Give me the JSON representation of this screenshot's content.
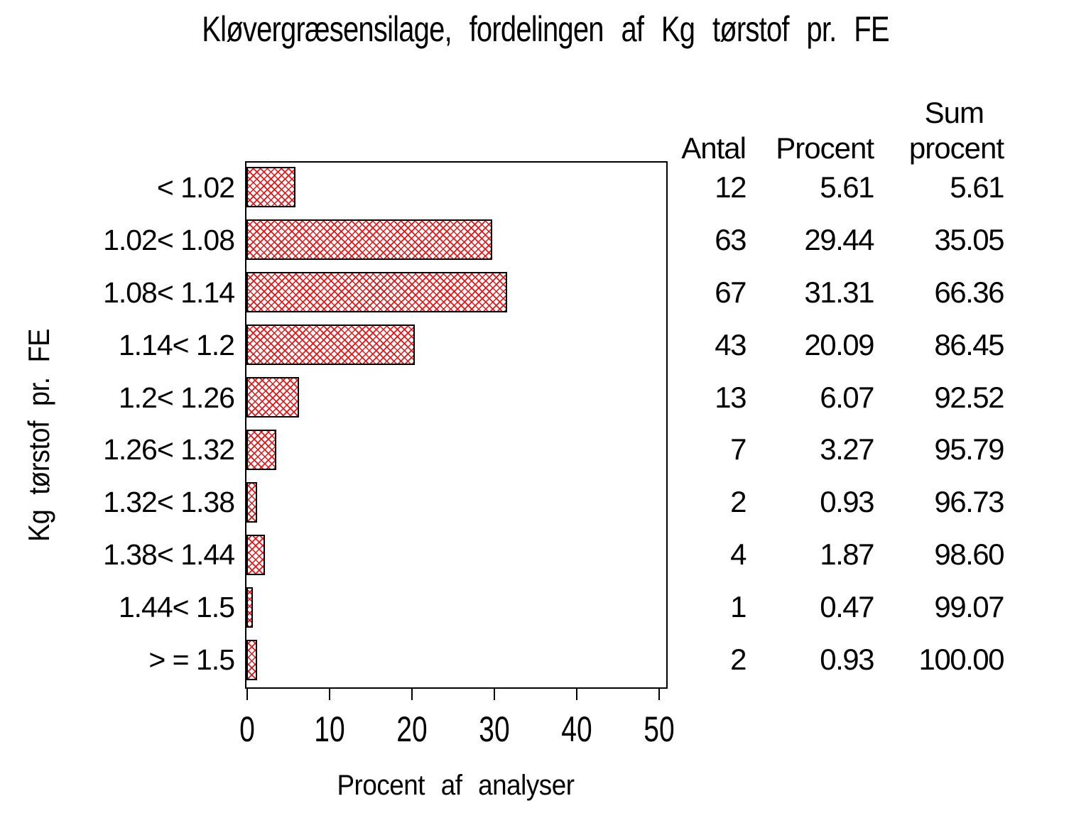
{
  "title": "Kløvergræsensilage, fordelingen af Kg tørstof pr. FE",
  "colors": {
    "bar_hatch_red": "#ee1111",
    "bar_border": "#000000",
    "axis": "#000000",
    "text": "#000000",
    "background": "#ffffff"
  },
  "table": {
    "col_antal": "Antal",
    "col_procent": "Procent",
    "col_sum_line1": "Sum",
    "col_sum_line2": "procent"
  },
  "chart_data": {
    "type": "bar",
    "orientation": "horizontal",
    "title": "Kløvergræsensilage, fordelingen af Kg tørstof pr. FE",
    "xlabel": "Procent af analyser",
    "ylabel": "Kg tørstof pr. FE",
    "xlim": [
      0,
      50
    ],
    "xticks": [
      0,
      10,
      20,
      30,
      40,
      50
    ],
    "grid": false,
    "legend": "none",
    "bar_style": "red diagonal crosshatch with black outline",
    "categories": [
      "< 1.02",
      "1.02< 1.08",
      "1.08< 1.14",
      "1.14< 1.2",
      "1.2< 1.26",
      "1.26< 1.32",
      "1.32< 1.38",
      "1.38< 1.44",
      "1.44< 1.5",
      "> = 1.5"
    ],
    "values": [
      5.61,
      29.44,
      31.31,
      20.09,
      6.07,
      3.27,
      0.93,
      1.87,
      0.47,
      0.93
    ],
    "counts": [
      12,
      63,
      67,
      43,
      13,
      7,
      2,
      4,
      1,
      2
    ],
    "percent_labels": [
      "5.61",
      "29.44",
      "31.31",
      "20.09",
      "6.07",
      "3.27",
      "0.93",
      "1.87",
      "0.47",
      "0.93"
    ],
    "cum_percent_labels": [
      "5.61",
      "35.05",
      "66.36",
      "86.45",
      "92.52",
      "95.79",
      "96.73",
      "98.60",
      "99.07",
      "100.00"
    ]
  }
}
